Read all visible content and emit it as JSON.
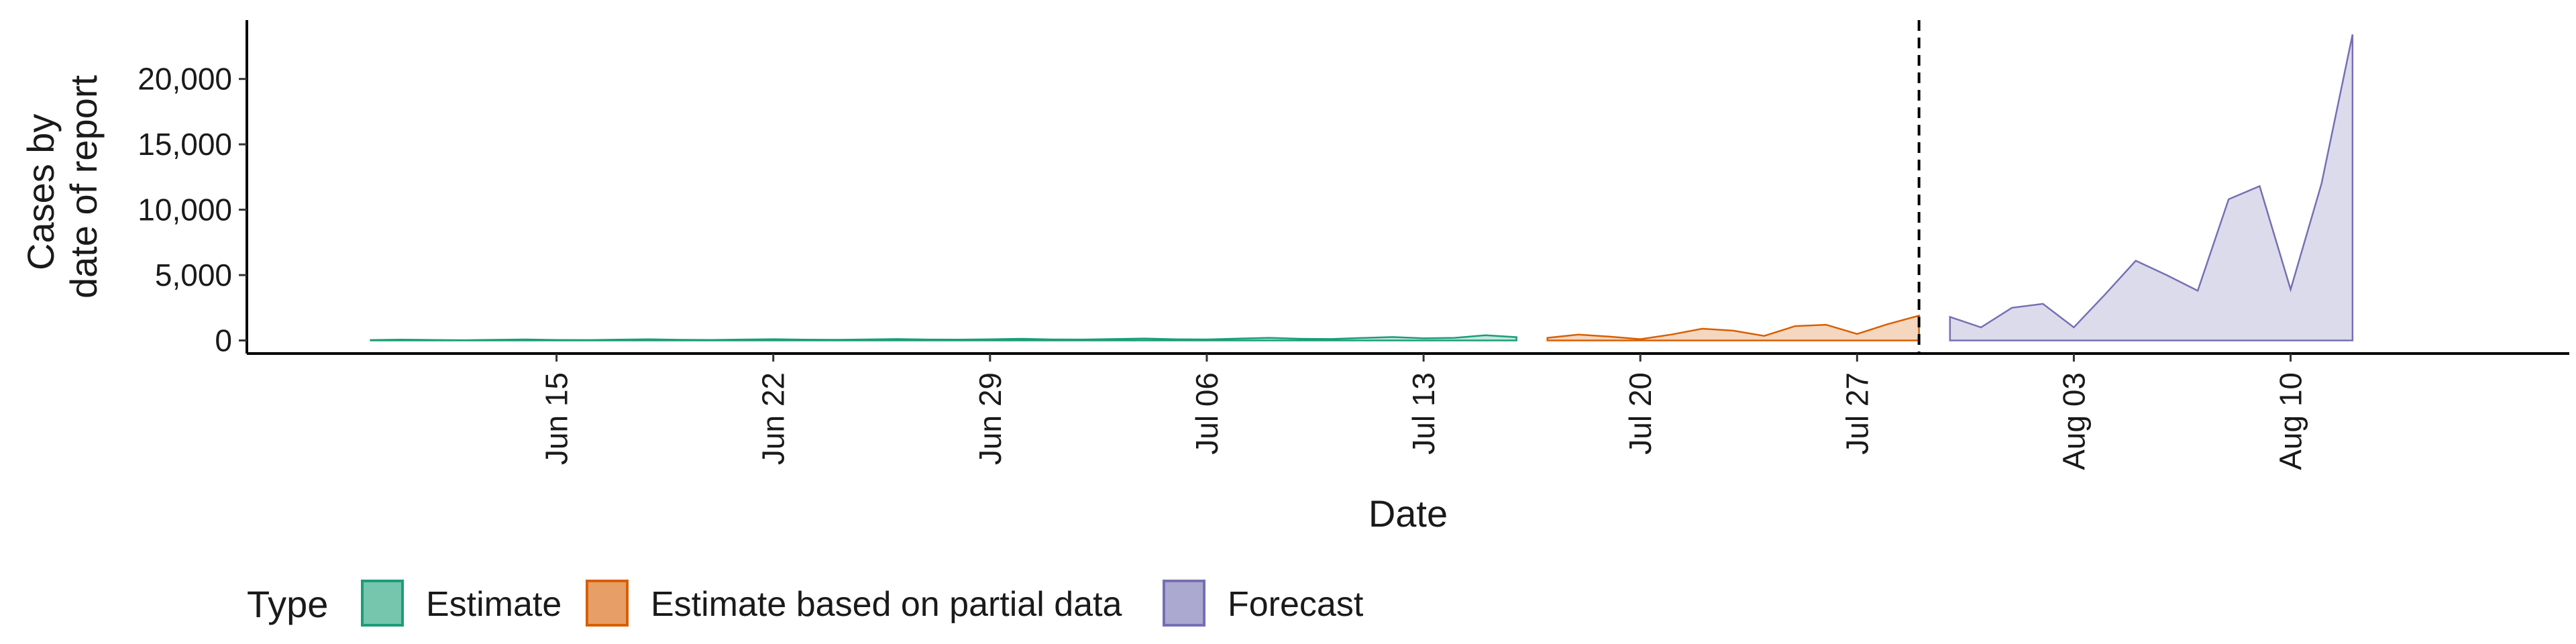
{
  "chart_data": {
    "type": "area",
    "xlabel": "Date",
    "ylabel_lines": [
      "Cases by",
      "date of report"
    ],
    "ylim": [
      -1000,
      24500
    ],
    "y_ticks": [
      0,
      5000,
      10000,
      15000,
      20000
    ],
    "y_tick_labels": [
      "0",
      "5,000",
      "10,000",
      "15,000",
      "20,000"
    ],
    "x_range": [
      "2020-06-05",
      "2020-08-19"
    ],
    "x_ticks": [
      "2020-06-15",
      "2020-06-22",
      "2020-06-29",
      "2020-07-06",
      "2020-07-13",
      "2020-07-20",
      "2020-07-27",
      "2020-08-03",
      "2020-08-10"
    ],
    "x_tick_labels": [
      "Jun 15",
      "Jun 22",
      "Jun 29",
      "Jul 06",
      "Jul 13",
      "Jul 20",
      "Jul 27",
      "Aug 03",
      "Aug 10"
    ],
    "forecast_start_line": "2020-07-29",
    "legend": {
      "title": "Type",
      "placement": "bottom",
      "entries": [
        "Estimate",
        "Estimate based on partial data",
        "Forecast"
      ]
    },
    "colors": {
      "Estimate": "#1b9e77",
      "Estimate based on partial data": "#d95f02",
      "Forecast": "#7570b3"
    },
    "series": [
      {
        "name": "Estimate",
        "x": [
          "2020-06-09",
          "2020-06-10",
          "2020-06-11",
          "2020-06-12",
          "2020-06-13",
          "2020-06-14",
          "2020-06-15",
          "2020-06-16",
          "2020-06-17",
          "2020-06-18",
          "2020-06-19",
          "2020-06-20",
          "2020-06-21",
          "2020-06-22",
          "2020-06-23",
          "2020-06-24",
          "2020-06-25",
          "2020-06-26",
          "2020-06-27",
          "2020-06-28",
          "2020-06-29",
          "2020-06-30",
          "2020-07-01",
          "2020-07-02",
          "2020-07-03",
          "2020-07-04",
          "2020-07-05",
          "2020-07-06",
          "2020-07-07",
          "2020-07-08",
          "2020-07-09",
          "2020-07-10",
          "2020-07-11",
          "2020-07-12",
          "2020-07-13",
          "2020-07-14",
          "2020-07-15",
          "2020-07-16"
        ],
        "lower": [
          0,
          0,
          0,
          0,
          0,
          0,
          0,
          0,
          0,
          0,
          0,
          0,
          0,
          0,
          0,
          0,
          0,
          0,
          0,
          0,
          0,
          0,
          0,
          0,
          0,
          0,
          0,
          0,
          0,
          0,
          0,
          0,
          0,
          0,
          0,
          0,
          0,
          0
        ],
        "upper": [
          30,
          60,
          40,
          20,
          50,
          80,
          40,
          30,
          60,
          90,
          50,
          40,
          70,
          100,
          60,
          50,
          80,
          110,
          70,
          60,
          90,
          130,
          80,
          70,
          110,
          150,
          90,
          80,
          140,
          200,
          130,
          110,
          190,
          260,
          170,
          200,
          400,
          250
        ]
      },
      {
        "name": "Estimate based on partial data",
        "x": [
          "2020-07-17",
          "2020-07-18",
          "2020-07-19",
          "2020-07-20",
          "2020-07-21",
          "2020-07-22",
          "2020-07-23",
          "2020-07-24",
          "2020-07-25",
          "2020-07-26",
          "2020-07-27",
          "2020-07-28",
          "2020-07-29"
        ],
        "lower": [
          0,
          0,
          0,
          0,
          0,
          0,
          0,
          0,
          0,
          0,
          0,
          0,
          0
        ],
        "upper": [
          200,
          450,
          300,
          100,
          450,
          900,
          750,
          350,
          1100,
          1200,
          500,
          1250,
          1900
        ]
      },
      {
        "name": "Forecast",
        "x": [
          "2020-07-30",
          "2020-07-31",
          "2020-08-01",
          "2020-08-02",
          "2020-08-03",
          "2020-08-04",
          "2020-08-05",
          "2020-08-06",
          "2020-08-07",
          "2020-08-08",
          "2020-08-09",
          "2020-08-10",
          "2020-08-11",
          "2020-08-12"
        ],
        "lower": [
          0,
          0,
          0,
          0,
          0,
          0,
          0,
          0,
          0,
          0,
          0,
          0,
          0,
          0
        ],
        "upper": [
          1800,
          1000,
          2500,
          2800,
          1000,
          3500,
          6100,
          5000,
          3800,
          10800,
          11800,
          3900,
          12000,
          23400
        ]
      }
    ]
  }
}
